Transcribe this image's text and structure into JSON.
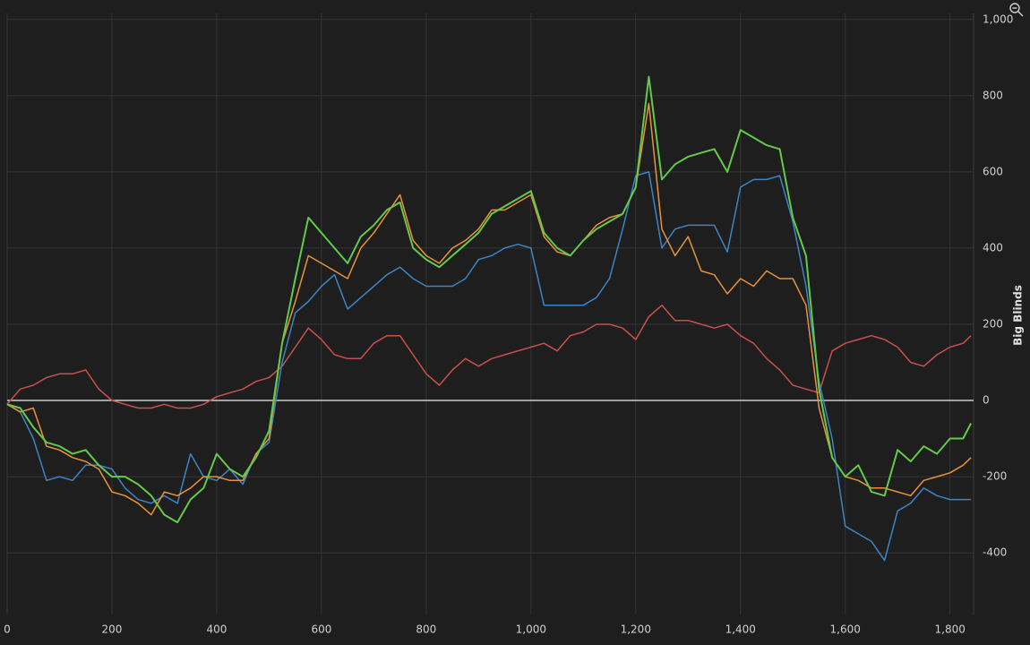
{
  "chart_data": {
    "type": "line",
    "y_label": "Big Blinds",
    "xlim": [
      0,
      1845
    ],
    "ylim": [
      -562,
      1016
    ],
    "xticks": [
      0,
      200,
      400,
      600,
      800,
      {
        "value": 1000,
        "label": "1,000"
      },
      {
        "value": 1200,
        "label": "1,200"
      },
      {
        "value": 1400,
        "label": "1,400"
      },
      {
        "value": 1600,
        "label": "1,600"
      },
      {
        "value": 1800,
        "label": "1,800"
      }
    ],
    "yticks": [
      -400,
      -200,
      0,
      200,
      400,
      600,
      800,
      {
        "value": 1000,
        "label": "1,000"
      }
    ],
    "grid": true,
    "zero_line": true,
    "x": [
      0,
      25,
      50,
      75,
      100,
      125,
      150,
      175,
      200,
      225,
      250,
      275,
      300,
      325,
      350,
      375,
      400,
      425,
      450,
      475,
      500,
      525,
      550,
      575,
      600,
      625,
      650,
      675,
      700,
      725,
      750,
      775,
      800,
      825,
      850,
      875,
      900,
      925,
      950,
      975,
      1000,
      1025,
      1050,
      1075,
      1100,
      1125,
      1150,
      1175,
      1200,
      1225,
      1250,
      1275,
      1300,
      1325,
      1350,
      1375,
      1400,
      1425,
      1450,
      1475,
      1500,
      1525,
      1550,
      1575,
      1600,
      1625,
      1650,
      1675,
      1700,
      1725,
      1750,
      1775,
      1800,
      1825,
      1840
    ],
    "series": [
      {
        "color": "#c8504c",
        "values": [
          -10,
          30,
          40,
          60,
          70,
          70,
          80,
          30,
          0,
          -10,
          -20,
          -20,
          -10,
          -20,
          -20,
          -10,
          10,
          20,
          30,
          50,
          60,
          90,
          140,
          190,
          160,
          120,
          110,
          110,
          150,
          170,
          170,
          120,
          70,
          40,
          80,
          110,
          90,
          110,
          120,
          130,
          140,
          150,
          130,
          170,
          180,
          200,
          200,
          190,
          160,
          220,
          250,
          210,
          210,
          200,
          190,
          200,
          170,
          150,
          110,
          80,
          40,
          30,
          20,
          130,
          150,
          160,
          170,
          160,
          140,
          100,
          90,
          120,
          140,
          150,
          170
        ]
      },
      {
        "color": "#3d83c4",
        "values": [
          -10,
          -30,
          -100,
          -210,
          -200,
          -210,
          -170,
          -170,
          -180,
          -230,
          -260,
          -270,
          -250,
          -270,
          -140,
          -200,
          -210,
          -180,
          -220,
          -140,
          -110,
          100,
          230,
          260,
          300,
          330,
          240,
          270,
          300,
          330,
          350,
          320,
          300,
          300,
          300,
          320,
          370,
          380,
          400,
          410,
          400,
          250,
          250,
          250,
          250,
          270,
          320,
          450,
          590,
          600,
          400,
          450,
          460,
          460,
          460,
          390,
          560,
          580,
          580,
          590,
          470,
          300,
          50,
          -100,
          -330,
          -350,
          -370,
          -420,
          -290,
          -270,
          -230,
          -250,
          -260,
          -260,
          -260
        ]
      },
      {
        "color": "#e8913a",
        "values": [
          -10,
          -30,
          -20,
          -120,
          -130,
          -150,
          -160,
          -180,
          -240,
          -250,
          -270,
          -300,
          -240,
          -250,
          -230,
          -200,
          -200,
          -210,
          -210,
          -140,
          -100,
          150,
          260,
          380,
          360,
          340,
          320,
          400,
          440,
          490,
          540,
          420,
          380,
          360,
          400,
          420,
          450,
          500,
          500,
          520,
          540,
          430,
          390,
          380,
          420,
          460,
          480,
          490,
          560,
          780,
          450,
          380,
          430,
          340,
          330,
          280,
          320,
          300,
          340,
          320,
          320,
          250,
          -20,
          -150,
          -200,
          -210,
          -230,
          -230,
          -240,
          -250,
          -210,
          -200,
          -190,
          -170,
          -150
        ]
      },
      {
        "color": "#63c94a",
        "values": [
          -10,
          -20,
          -70,
          -110,
          -120,
          -140,
          -130,
          -170,
          -200,
          -200,
          -220,
          -250,
          -300,
          -320,
          -260,
          -230,
          -140,
          -180,
          -200,
          -150,
          -80,
          150,
          320,
          480,
          440,
          400,
          360,
          430,
          460,
          500,
          520,
          400,
          370,
          350,
          380,
          410,
          440,
          490,
          510,
          530,
          550,
          440,
          400,
          380,
          420,
          450,
          470,
          490,
          560,
          850,
          580,
          620,
          640,
          650,
          660,
          600,
          710,
          690,
          670,
          660,
          480,
          380,
          30,
          -150,
          -200,
          -170,
          -240,
          -250,
          -130,
          -160,
          -120,
          -140,
          -100,
          -100,
          -60
        ]
      }
    ]
  }
}
